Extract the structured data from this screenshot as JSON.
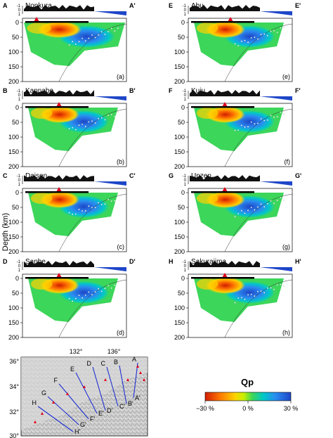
{
  "figure": {
    "y_axis_label": "Depth (km)",
    "depth_ticks": [
      "0",
      "50",
      "100",
      "150",
      "200"
    ],
    "topo_ticks": [
      "-1",
      "0",
      "1"
    ],
    "topo_unit": "km",
    "panels": [
      {
        "start": "A",
        "end": "A'",
        "volcano": "Nonkura",
        "tag": "(a)"
      },
      {
        "start": "B",
        "end": "B'",
        "volcano": "Kannabe",
        "tag": "(b)"
      },
      {
        "start": "C",
        "end": "C'",
        "volcano": "Daisen",
        "tag": "(c)"
      },
      {
        "start": "D",
        "end": "D'",
        "volcano": "Sanbe",
        "tag": "(d)"
      },
      {
        "start": "E",
        "end": "E'",
        "volcano": "Abu",
        "tag": "(e)"
      },
      {
        "start": "F",
        "end": "F'",
        "volcano": "Kuju",
        "tag": "(f)"
      },
      {
        "start": "G",
        "end": "G'",
        "volcano": "Unzen",
        "tag": "(g)"
      },
      {
        "start": "H",
        "end": "H'",
        "volcano": "Sakurajima",
        "tag": "(h)"
      }
    ],
    "map": {
      "lon_labels": [
        "132°",
        "136°"
      ],
      "lat_labels": [
        "36°",
        "34°",
        "32°",
        "30°"
      ],
      "profile_labels": [
        "A",
        "B",
        "C",
        "D",
        "E",
        "F",
        "G",
        "H",
        "A'",
        "B'",
        "C'",
        "D'",
        "E'",
        "F'",
        "G'",
        "H'"
      ]
    },
    "colorbar": {
      "title": "Qp",
      "tick_labels": [
        "−30 %",
        "0 %",
        "30 %"
      ],
      "colors": [
        "#d21c00",
        "#ff7a00",
        "#ffd200",
        "#c8f000",
        "#3cd65a",
        "#00c8c8",
        "#2a8cf0",
        "#1e46c8"
      ]
    }
  }
}
